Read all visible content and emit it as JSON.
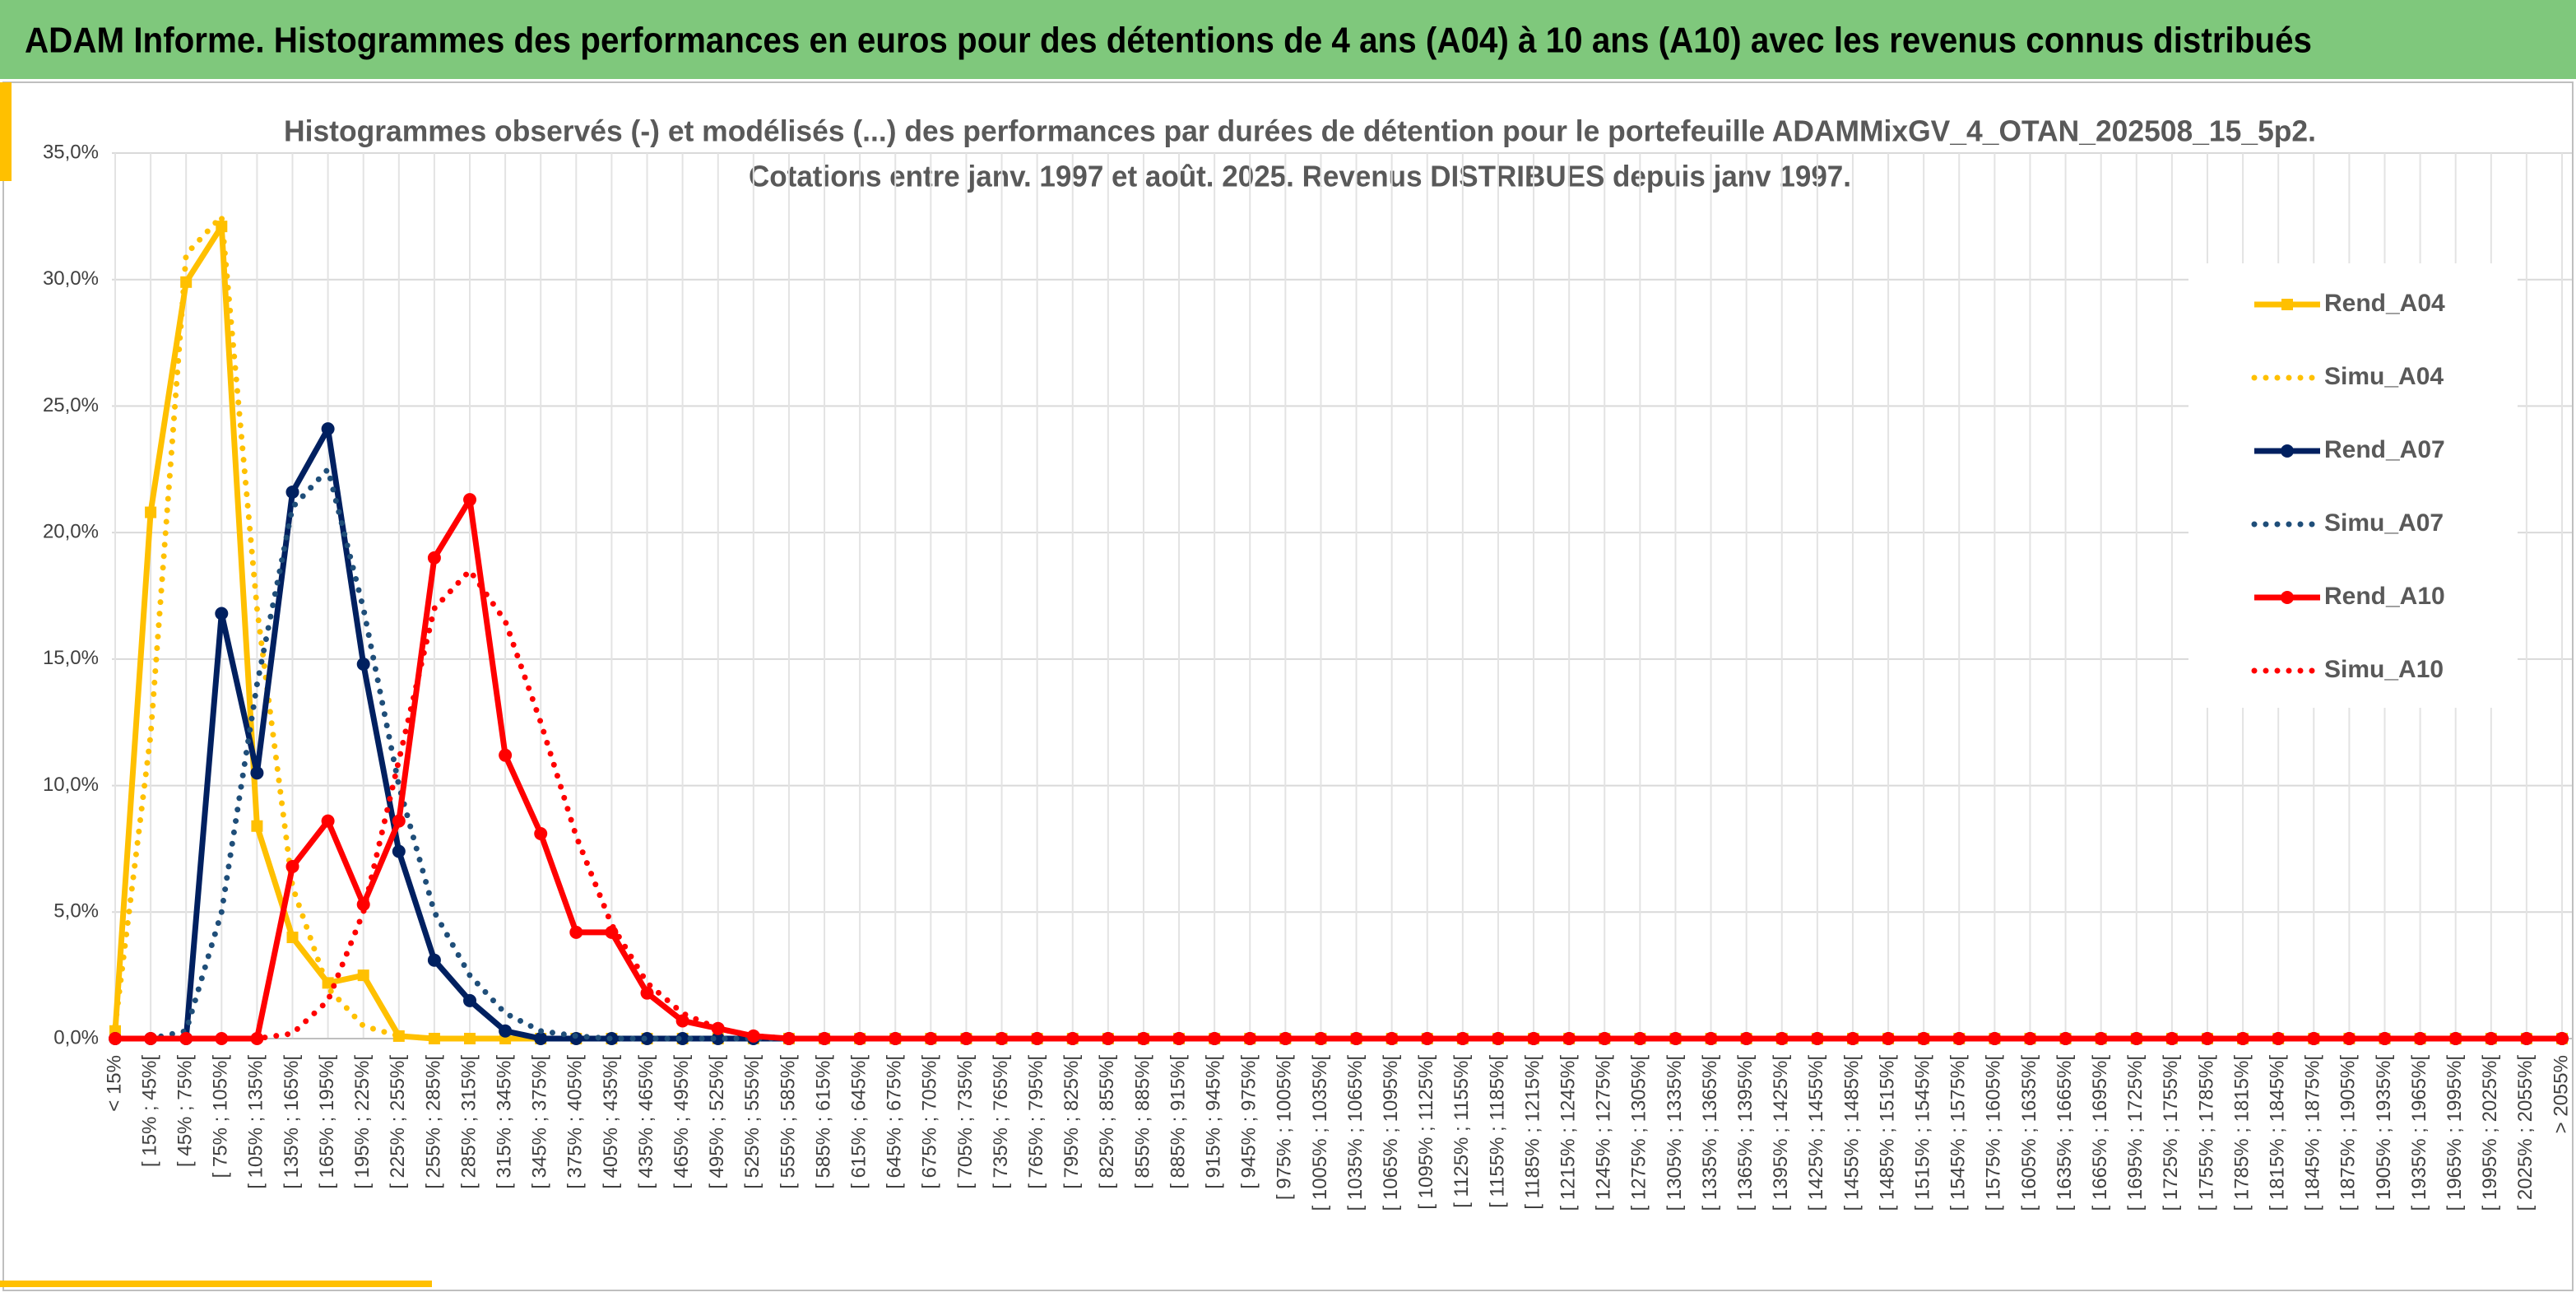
{
  "chart_data": {
    "type": "line",
    "banner": "ADAM Informe. Histogrammes des performances en euros pour des détentions de 4 ans (A04) à 10 ans (A10) avec les revenus connus distribués",
    "title": "Histogrammes observés (-) et modélisés (...) des performances par durées de détention pour le portefeuille ADAMMixGV_4_OTAN_202508_15_5p2.",
    "subtitle": "Cotations entre janv. 1997 et août. 2025. Revenus DISTRIBUES depuis janv 1997.",
    "categories": [
      "< 15%",
      "[ 15% ; 45%[",
      "[ 45% ; 75%[",
      "[ 75% ; 105%[",
      "[ 105% ; 135%[",
      "[ 135% ; 165%[",
      "[ 165% ; 195%[",
      "[ 195% ; 225%[",
      "[ 225% ; 255%[",
      "[ 255% ; 285%[",
      "[ 285% ; 315%[",
      "[ 315% ; 345%[",
      "[ 345% ; 375%[",
      "[ 375% ; 405%[",
      "[ 405% ; 435%[",
      "[ 435% ; 465%[",
      "[ 465% ; 495%[",
      "[ 495% ; 525%[",
      "[ 525% ; 555%[",
      "[ 555% ; 585%[",
      "[ 585% ; 615%[",
      "[ 615% ; 645%[",
      "[ 645% ; 675%[",
      "[ 675% ; 705%[",
      "[ 705% ; 735%[",
      "[ 735% ; 765%[",
      "[ 765% ; 795%[",
      "[ 795% ; 825%[",
      "[ 825% ; 855%[",
      "[ 855% ; 885%[",
      "[ 885% ; 915%[",
      "[ 915% ; 945%[",
      "[ 945% ; 975%[",
      "[ 975% ; 1005%[",
      "[ 1005% ; 1035%[",
      "[ 1035% ; 1065%[",
      "[ 1065% ; 1095%[",
      "[ 1095% ; 1125%[",
      "[ 1125% ; 1155%[",
      "[ 1155% ; 1185%[",
      "[ 1185% ; 1215%[",
      "[ 1215% ; 1245%[",
      "[ 1245% ; 1275%[",
      "[ 1275% ; 1305%[",
      "[ 1305% ; 1335%[",
      "[ 1335% ; 1365%[",
      "[ 1365% ; 1395%[",
      "[ 1395% ; 1425%[",
      "[ 1425% ; 1455%[",
      "[ 1455% ; 1485%[",
      "[ 1485% ; 1515%[",
      "[ 1515% ; 1545%[",
      "[ 1545% ; 1575%[",
      "[ 1575% ; 1605%[",
      "[ 1605% ; 1635%[",
      "[ 1635% ; 1665%[",
      "[ 1665% ; 1695%[",
      "[ 1695% ; 1725%[",
      "[ 1725% ; 1755%[",
      "[ 1755% ; 1785%[",
      "[ 1785% ; 1815%[",
      "[ 1815% ; 1845%[",
      "[ 1845% ; 1875%[",
      "[ 1875% ; 1905%[",
      "[ 1905% ; 1935%[",
      "[ 1935% ; 1965%[",
      "[ 1965% ; 1995%[",
      "[ 1995% ; 2025%[",
      "[ 2025% ; 2055%[",
      "> 2055%"
    ],
    "series": [
      {
        "name": "Rend_A04",
        "color": "#ffc000",
        "dash": "solid",
        "marker": "square",
        "values": [
          0.3,
          20.8,
          29.9,
          32.1,
          8.4,
          4.0,
          2.2,
          2.5,
          0.1,
          0,
          0,
          0,
          0,
          0,
          0,
          0,
          0,
          0,
          0,
          0,
          0,
          0,
          0,
          0,
          0,
          0,
          0,
          0,
          0,
          0,
          0,
          0,
          0,
          0,
          0,
          0,
          0,
          0,
          0,
          0,
          0,
          0,
          0,
          0,
          0,
          0,
          0,
          0,
          0,
          0,
          0,
          0,
          0,
          0,
          0,
          0,
          0,
          0,
          0,
          0,
          0,
          0,
          0,
          0,
          0,
          0,
          0,
          0,
          0,
          0
        ]
      },
      {
        "name": "Simu_A04",
        "color": "#ffc000",
        "dash": "dotted",
        "marker": null,
        "values": [
          0.5,
          12,
          31,
          32.5,
          17,
          6,
          2,
          0.5,
          0.1,
          0,
          0,
          0,
          0,
          0,
          0,
          0,
          0,
          0,
          0,
          0,
          0,
          0,
          0,
          0,
          0,
          0,
          0,
          0,
          0,
          0,
          0,
          0,
          0,
          0,
          0,
          0,
          0,
          0,
          0,
          0,
          0,
          0,
          0,
          0,
          0,
          0,
          0,
          0,
          0,
          0,
          0,
          0,
          0,
          0,
          0,
          0,
          0,
          0,
          0,
          0,
          0,
          0,
          0,
          0,
          0,
          0,
          0,
          0,
          0,
          0
        ]
      },
      {
        "name": "Rend_A07",
        "color": "#002060",
        "dash": "solid",
        "marker": "circle",
        "values": [
          0,
          0,
          0,
          16.8,
          10.5,
          21.6,
          24.1,
          14.8,
          7.4,
          3.1,
          1.5,
          0.3,
          0,
          0,
          0,
          0,
          0,
          0,
          0,
          0,
          0,
          0,
          0,
          0,
          0,
          0,
          0,
          0,
          0,
          0,
          0,
          0,
          0,
          0,
          0,
          0,
          0,
          0,
          0,
          0,
          0,
          0,
          0,
          0,
          0,
          0,
          0,
          0,
          0,
          0,
          0,
          0,
          0,
          0,
          0,
          0,
          0,
          0,
          0,
          0,
          0,
          0,
          0,
          0,
          0,
          0,
          0,
          0,
          0,
          0
        ]
      },
      {
        "name": "Simu_A07",
        "color": "#1f4e79",
        "dash": "dotted",
        "marker": null,
        "values": [
          0,
          0,
          0.3,
          5,
          14,
          21,
          22.5,
          17,
          10,
          5,
          2.5,
          1,
          0.3,
          0.1,
          0,
          0,
          0,
          0,
          0,
          0,
          0,
          0,
          0,
          0,
          0,
          0,
          0,
          0,
          0,
          0,
          0,
          0,
          0,
          0,
          0,
          0,
          0,
          0,
          0,
          0,
          0,
          0,
          0,
          0,
          0,
          0,
          0,
          0,
          0,
          0,
          0,
          0,
          0,
          0,
          0,
          0,
          0,
          0,
          0,
          0,
          0,
          0,
          0,
          0,
          0,
          0,
          0,
          0,
          0,
          0
        ]
      },
      {
        "name": "Rend_A10",
        "color": "#ff0000",
        "dash": "solid",
        "marker": "circle",
        "values": [
          0,
          0,
          0,
          0,
          0,
          6.8,
          8.6,
          5.3,
          8.6,
          19.0,
          21.3,
          11.2,
          8.1,
          4.2,
          4.2,
          1.8,
          0.7,
          0.4,
          0.1,
          0,
          0,
          0,
          0,
          0,
          0,
          0,
          0,
          0,
          0,
          0,
          0,
          0,
          0,
          0,
          0,
          0,
          0,
          0,
          0,
          0,
          0,
          0,
          0,
          0,
          0,
          0,
          0,
          0,
          0,
          0,
          0,
          0,
          0,
          0,
          0,
          0,
          0,
          0,
          0,
          0,
          0,
          0,
          0,
          0,
          0,
          0,
          0,
          0,
          0,
          0
        ]
      },
      {
        "name": "Simu_A10",
        "color": "#ff0000",
        "dash": "dotted",
        "marker": null,
        "values": [
          0,
          0,
          0,
          0,
          0,
          0.2,
          1.5,
          5,
          11,
          17,
          18.5,
          16.5,
          12.5,
          8,
          4.5,
          2.2,
          1,
          0.4,
          0.1,
          0,
          0,
          0,
          0,
          0,
          0,
          0,
          0,
          0,
          0,
          0,
          0,
          0,
          0,
          0,
          0,
          0,
          0,
          0,
          0,
          0,
          0,
          0,
          0,
          0,
          0,
          0,
          0,
          0,
          0,
          0,
          0,
          0,
          0,
          0,
          0,
          0,
          0,
          0,
          0,
          0,
          0,
          0,
          0,
          0,
          0,
          0,
          0,
          0,
          0,
          0
        ]
      }
    ],
    "ylim": [
      0,
      35
    ],
    "yticks": [
      {
        "value": 0,
        "label": "0,0%"
      },
      {
        "value": 5,
        "label": "5,0%"
      },
      {
        "value": 10,
        "label": "10,0%"
      },
      {
        "value": 15,
        "label": "15,0%"
      },
      {
        "value": 20,
        "label": "20,0%"
      },
      {
        "value": 25,
        "label": "25,0%"
      },
      {
        "value": 30,
        "label": "30,0%"
      },
      {
        "value": 35,
        "label": "35,0%"
      }
    ],
    "grid": true,
    "legend": "right"
  }
}
